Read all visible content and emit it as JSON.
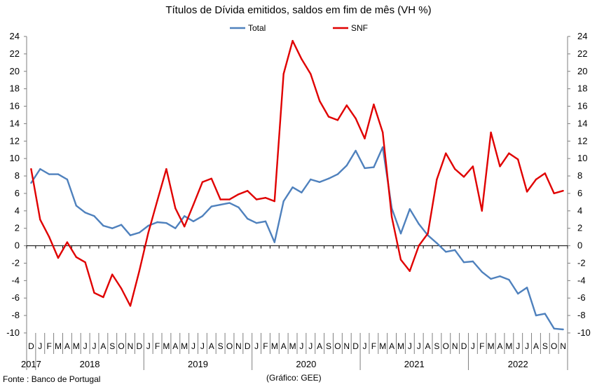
{
  "chart_data": {
    "type": "line",
    "title": "Títulos de Dívida emitidos, saldos em fim de mês  (VH %)",
    "ylim": [
      -10,
      24
    ],
    "yticks": [
      -10,
      -8,
      -6,
      -4,
      -2,
      0,
      2,
      4,
      6,
      8,
      10,
      12,
      14,
      16,
      18,
      20,
      22,
      24
    ],
    "months": [
      "D",
      "J",
      "F",
      "M",
      "A",
      "M",
      "J",
      "J",
      "A",
      "S",
      "O",
      "N",
      "D",
      "J",
      "F",
      "M",
      "A",
      "M",
      "J",
      "J",
      "A",
      "S",
      "O",
      "N",
      "D",
      "J",
      "F",
      "M",
      "A",
      "M",
      "J",
      "J",
      "A",
      "S",
      "O",
      "N",
      "D",
      "J",
      "F",
      "M",
      "A",
      "M",
      "J",
      "J",
      "A",
      "S",
      "O",
      "N",
      "D",
      "J",
      "F",
      "M",
      "A",
      "M",
      "J",
      "J",
      "A",
      "S",
      "O",
      "N"
    ],
    "years": [
      {
        "label": "2017",
        "start": 0,
        "end": 0
      },
      {
        "label": "2018",
        "start": 1,
        "end": 12
      },
      {
        "label": "2019",
        "start": 13,
        "end": 24
      },
      {
        "label": "2020",
        "start": 25,
        "end": 36
      },
      {
        "label": "2021",
        "start": 37,
        "end": 48
      },
      {
        "label": "2022",
        "start": 49,
        "end": 59
      }
    ],
    "series": [
      {
        "name": "Total",
        "color": "#4F81BD",
        "values": [
          7.2,
          8.8,
          8.2,
          8.2,
          7.6,
          4.6,
          3.8,
          3.4,
          2.3,
          2.0,
          2.4,
          1.2,
          1.5,
          2.3,
          2.7,
          2.6,
          2.0,
          3.4,
          2.8,
          3.4,
          4.5,
          4.7,
          4.9,
          4.4,
          3.1,
          2.6,
          2.8,
          0.4,
          5.1,
          6.7,
          6.1,
          7.6,
          7.3,
          7.7,
          8.2,
          9.2,
          10.9,
          8.9,
          9.0,
          11.3,
          4.3,
          1.4,
          4.2,
          2.5,
          1.2,
          0.3,
          -0.7,
          -0.5,
          -1.9,
          -1.8,
          -3.0,
          -3.8,
          -3.5,
          -3.9,
          -5.5,
          -4.8,
          -8.0,
          -7.8,
          -9.5,
          -9.6
        ]
      },
      {
        "name": "SNF",
        "color": "#E00000",
        "values": [
          8.8,
          3.0,
          1.0,
          -1.4,
          0.4,
          -1.3,
          -1.9,
          -5.4,
          -5.9,
          -3.3,
          -4.9,
          -6.9,
          -2.9,
          1.5,
          5.2,
          8.8,
          4.3,
          2.2,
          4.7,
          7.3,
          7.7,
          5.3,
          5.3,
          5.9,
          6.3,
          5.3,
          5.5,
          5.1,
          19.7,
          23.5,
          21.4,
          19.7,
          16.6,
          14.8,
          14.4,
          16.1,
          14.6,
          12.3,
          16.2,
          13.0,
          3.3,
          -1.6,
          -2.9,
          0.0,
          1.4,
          7.6,
          10.6,
          8.8,
          7.9,
          9.1,
          4.0,
          13.0,
          9.1,
          10.6,
          9.9,
          6.2,
          7.6,
          8.3,
          6.0,
          6.3
        ]
      }
    ]
  },
  "footer": {
    "source": "Fonte : Banco de Portugal",
    "credit": "(Gráfico: GEE)"
  }
}
